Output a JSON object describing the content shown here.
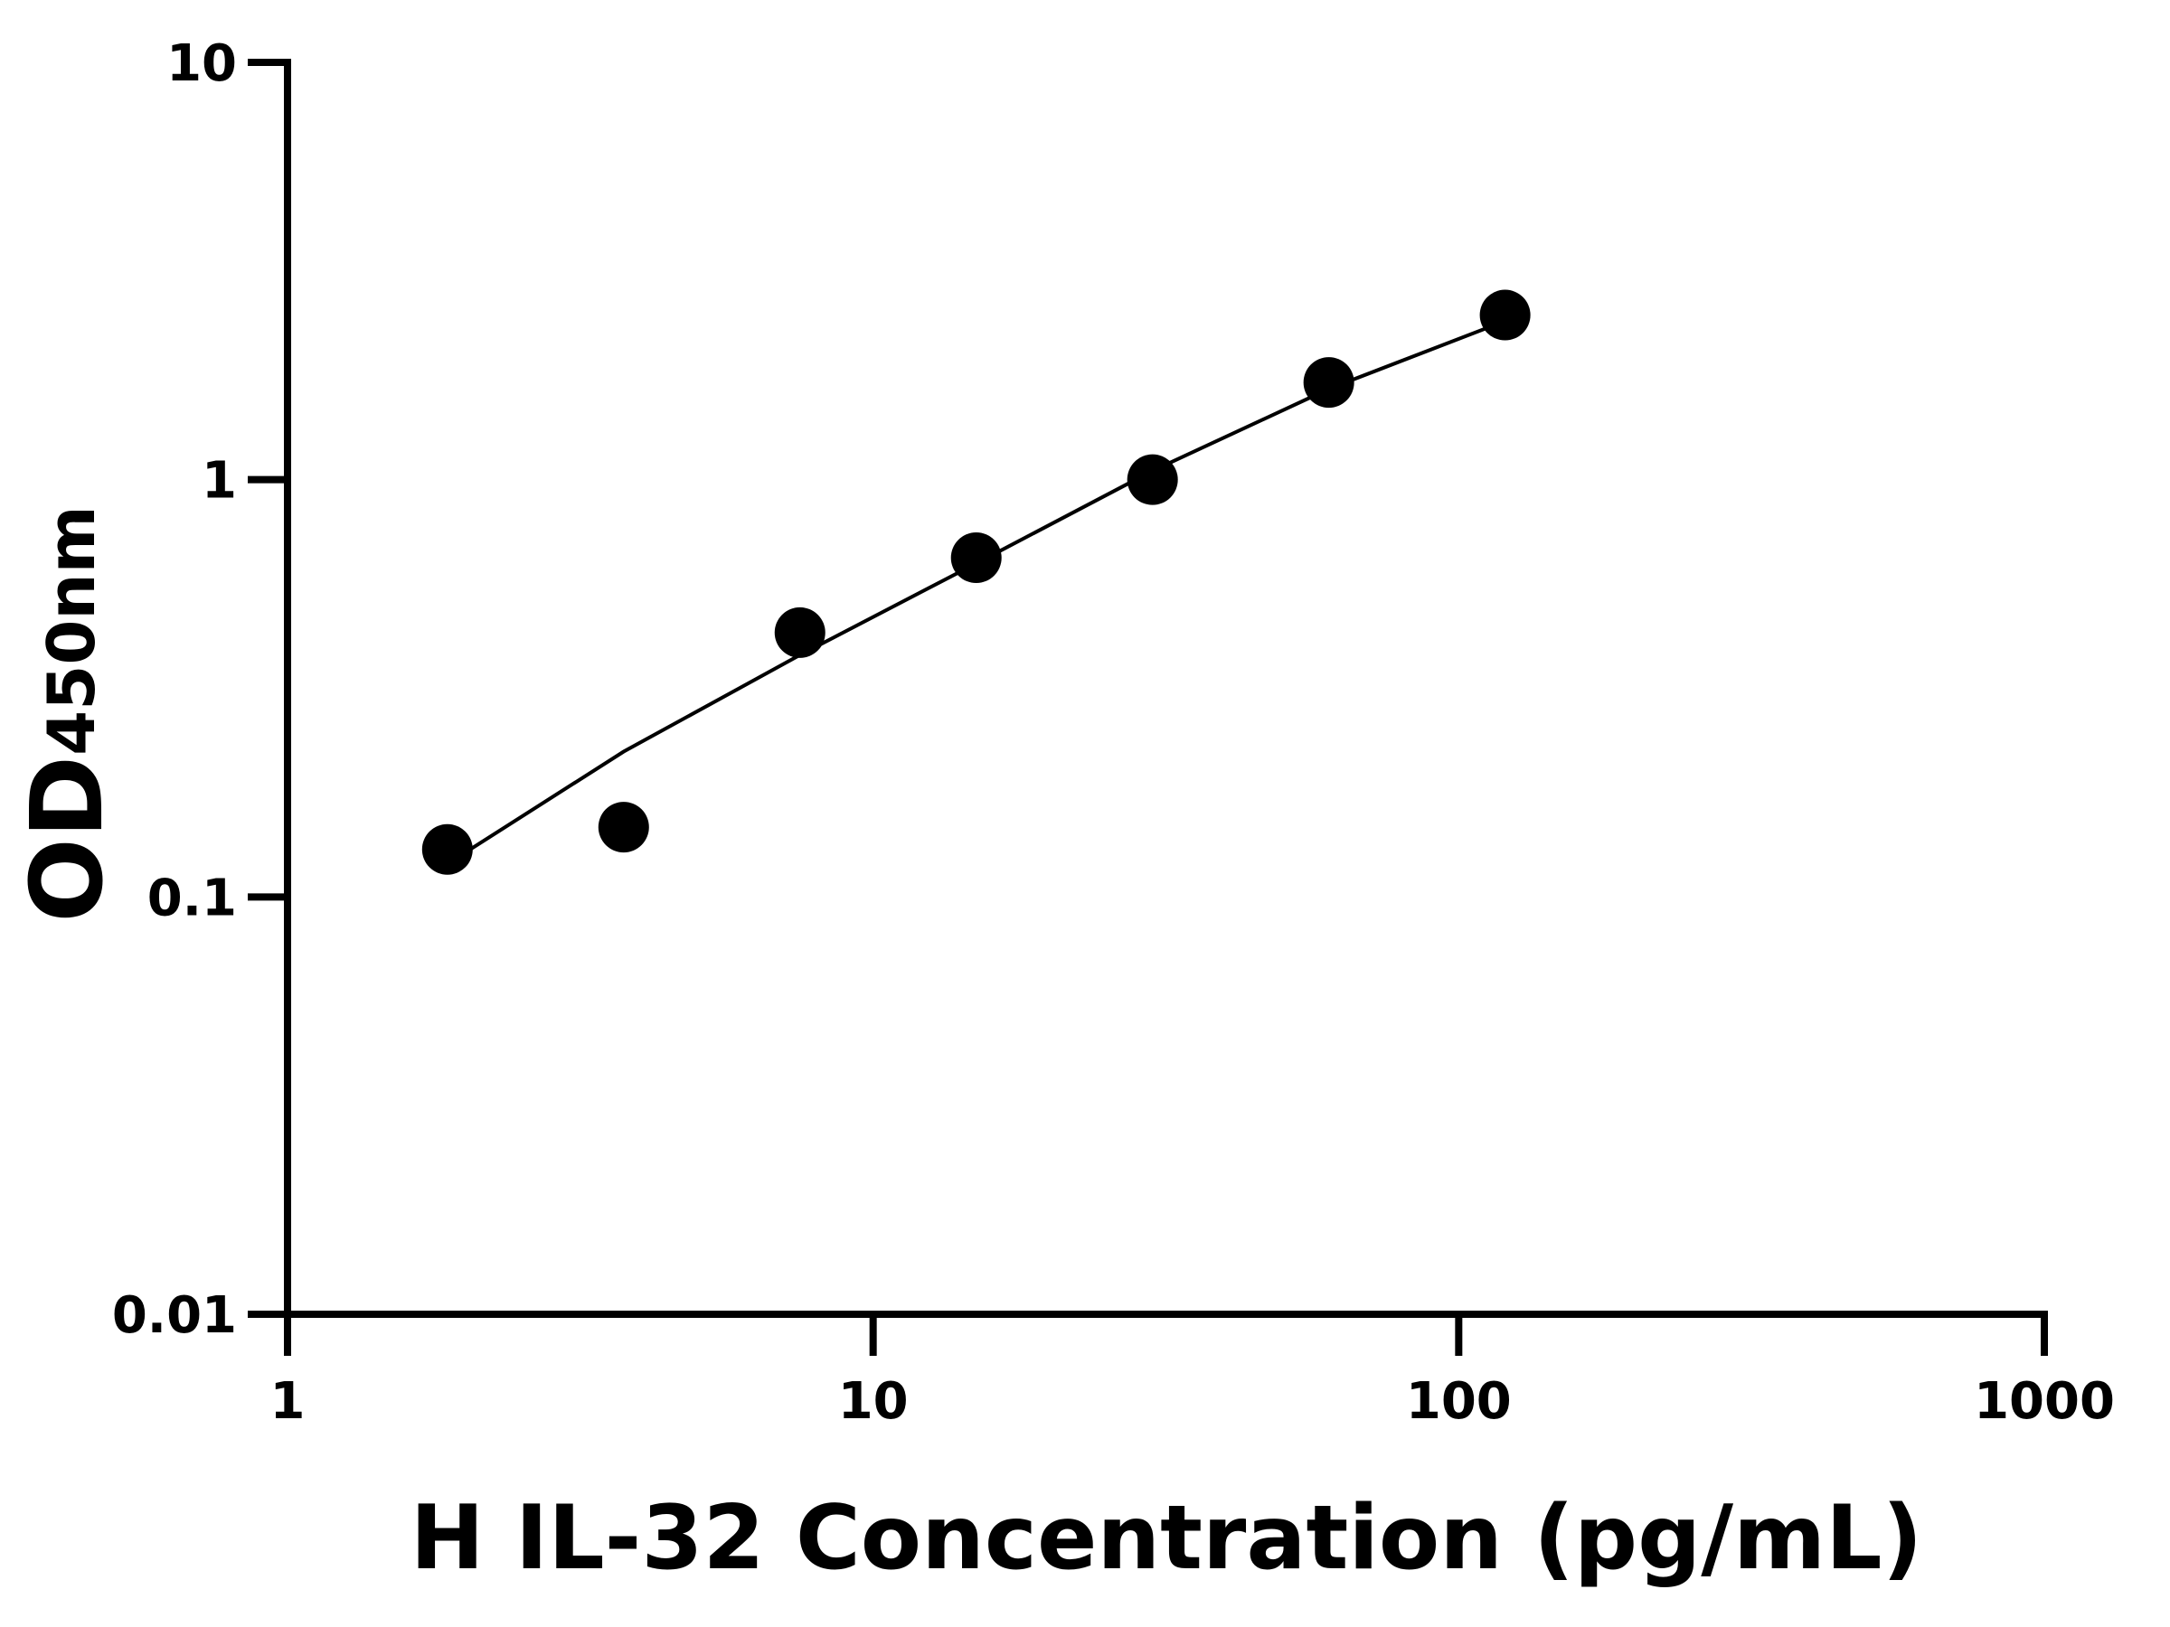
{
  "chart_data": {
    "type": "scatter",
    "xlabel": "H IL-32 Concentration (pg/mL)",
    "ylabel": {
      "main": "OD",
      "sub": "450nm"
    },
    "log_x": true,
    "log_y": true,
    "xlim": [
      1,
      1000
    ],
    "xticks": [
      1,
      10,
      100,
      1000
    ],
    "ylim": [
      0.01,
      10
    ],
    "yticks": [
      0.01,
      0.1,
      1,
      10
    ],
    "series": [
      {
        "x": [
          1.875,
          3.75,
          7.5,
          15,
          30,
          60,
          120
        ],
        "values": [
          0.13,
          0.147,
          0.43,
          0.65,
          1.0,
          1.71,
          2.48
        ],
        "color": "#000000"
      }
    ],
    "fit_curve": {
      "x": [
        1.875,
        3.75,
        7.5,
        15,
        30,
        60,
        120
      ],
      "values": [
        0.12,
        0.223,
        0.38,
        0.63,
        1.05,
        1.65,
        2.4
      ],
      "color": "#000000"
    }
  }
}
